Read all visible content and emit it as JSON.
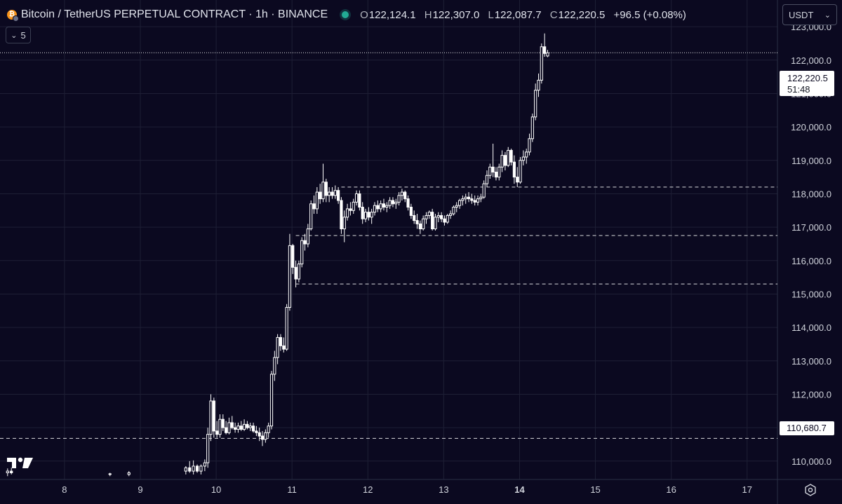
{
  "header": {
    "title": "Bitcoin / TetherUS PERPETUAL CONTRACT · 1h · BINANCE",
    "open_label": "O",
    "open": "122,124.1",
    "high_label": "H",
    "high": "122,307.0",
    "low_label": "L",
    "low": "122,087.7",
    "close_label": "C",
    "close": "122,220.5",
    "change": "+96.5 (+0.08%)",
    "status_color": "#22ab94"
  },
  "indicator_toggle": {
    "count": "5"
  },
  "currency": {
    "label": "USDT"
  },
  "price_tag": {
    "price": "122,220.5",
    "countdown": "51:48"
  },
  "level_tag": {
    "price": "110,680.7"
  },
  "colors": {
    "background": "#0b0920",
    "candle": "#ffffff",
    "grid": "#1e1f35",
    "text": "#d1d4dc"
  },
  "icons": {
    "logo": "tradingview-logo-icon",
    "settings": "gear-icon",
    "coin": "bitcoin-icon"
  },
  "chart_data": {
    "type": "candlestick",
    "timeframe": "1h",
    "x_tick_labels": [
      "8",
      "9",
      "10",
      "11",
      "12",
      "13",
      "14",
      "15",
      "16",
      "17"
    ],
    "y_tick_labels": [
      "123,000.0",
      "122,000.0",
      "121,000.0",
      "120,000.0",
      "119,000.0",
      "118,000.0",
      "117,000.0",
      "116,000.0",
      "115,000.0",
      "114,000.0",
      "113,000.0",
      "112,000.0",
      "111,000.0",
      "110,000.0"
    ],
    "y_tick_values": [
      123000,
      122000,
      121000,
      120000,
      119000,
      118000,
      117000,
      116000,
      115000,
      114000,
      113000,
      112000,
      111000,
      110000
    ],
    "x_tick_values": [
      8,
      9,
      10,
      11,
      12,
      13,
      14,
      15,
      16,
      17
    ],
    "x_range": [
      7.15,
      17.4
    ],
    "y_range": [
      109450,
      123800
    ],
    "grid": true,
    "horizontal_levels": [
      {
        "price": 118200,
        "from": 11.65,
        "style": "dashed"
      },
      {
        "price": 116750,
        "from": 11.05,
        "style": "dashed"
      },
      {
        "price": 115300,
        "from": 11.05,
        "style": "dashed"
      },
      {
        "price": 110680.7,
        "from": 7.15,
        "style": "dashed"
      }
    ],
    "last_price_line": 122220.5,
    "candles": [
      {
        "t": 7.25,
        "o": 109650,
        "h": 109780,
        "l": 109550,
        "c": 109700
      },
      {
        "t": 7.3,
        "o": 109700,
        "h": 109800,
        "l": 109600,
        "c": 109650
      },
      {
        "t": 8.6,
        "o": 109600,
        "h": 109650,
        "l": 109550,
        "c": 109620
      },
      {
        "t": 8.85,
        "o": 109600,
        "h": 109700,
        "l": 109550,
        "c": 109650
      },
      {
        "t": 9.6,
        "o": 109700,
        "h": 109850,
        "l": 109600,
        "c": 109800
      },
      {
        "t": 9.65,
        "o": 109800,
        "h": 110000,
        "l": 109650,
        "c": 109700
      },
      {
        "t": 9.7,
        "o": 109700,
        "h": 110020,
        "l": 109600,
        "c": 109850
      },
      {
        "t": 9.75,
        "o": 109850,
        "h": 109900,
        "l": 109650,
        "c": 109700
      },
      {
        "t": 9.8,
        "o": 109700,
        "h": 109900,
        "l": 109600,
        "c": 109850
      },
      {
        "t": 9.85,
        "o": 109850,
        "h": 110050,
        "l": 109700,
        "c": 109950
      },
      {
        "t": 9.89,
        "o": 109950,
        "h": 111000,
        "l": 109800,
        "c": 110800
      },
      {
        "t": 9.93,
        "o": 110800,
        "h": 112000,
        "l": 110600,
        "c": 111800
      },
      {
        "t": 9.97,
        "o": 111800,
        "h": 111900,
        "l": 110700,
        "c": 110900
      },
      {
        "t": 10.01,
        "o": 110900,
        "h": 111200,
        "l": 110700,
        "c": 110800
      },
      {
        "t": 10.05,
        "o": 110800,
        "h": 111400,
        "l": 110700,
        "c": 111250
      },
      {
        "t": 10.09,
        "o": 111250,
        "h": 111400,
        "l": 110900,
        "c": 111000
      },
      {
        "t": 10.13,
        "o": 111000,
        "h": 111200,
        "l": 110800,
        "c": 110850
      },
      {
        "t": 10.17,
        "o": 110850,
        "h": 111300,
        "l": 110800,
        "c": 111150
      },
      {
        "t": 10.21,
        "o": 111150,
        "h": 111350,
        "l": 110950,
        "c": 111000
      },
      {
        "t": 10.25,
        "o": 111000,
        "h": 111150,
        "l": 110850,
        "c": 110950
      },
      {
        "t": 10.29,
        "o": 110950,
        "h": 111150,
        "l": 110850,
        "c": 111050
      },
      {
        "t": 10.33,
        "o": 111050,
        "h": 111200,
        "l": 110900,
        "c": 110950
      },
      {
        "t": 10.37,
        "o": 110950,
        "h": 111250,
        "l": 110900,
        "c": 111100
      },
      {
        "t": 10.41,
        "o": 111100,
        "h": 111200,
        "l": 110950,
        "c": 111000
      },
      {
        "t": 10.45,
        "o": 111000,
        "h": 111150,
        "l": 110900,
        "c": 111050
      },
      {
        "t": 10.49,
        "o": 111050,
        "h": 111150,
        "l": 110850,
        "c": 110900
      },
      {
        "t": 10.53,
        "o": 110900,
        "h": 111050,
        "l": 110750,
        "c": 110850
      },
      {
        "t": 10.57,
        "o": 110850,
        "h": 111000,
        "l": 110600,
        "c": 110750
      },
      {
        "t": 10.61,
        "o": 110750,
        "h": 110900,
        "l": 110450,
        "c": 110650
      },
      {
        "t": 10.65,
        "o": 110650,
        "h": 110950,
        "l": 110550,
        "c": 110850
      },
      {
        "t": 10.69,
        "o": 110850,
        "h": 111150,
        "l": 110700,
        "c": 111050
      },
      {
        "t": 10.73,
        "o": 111050,
        "h": 112700,
        "l": 110950,
        "c": 112600
      },
      {
        "t": 10.77,
        "o": 112600,
        "h": 113300,
        "l": 112400,
        "c": 113100
      },
      {
        "t": 10.81,
        "o": 113100,
        "h": 113800,
        "l": 112900,
        "c": 113700
      },
      {
        "t": 10.85,
        "o": 113700,
        "h": 113800,
        "l": 113300,
        "c": 113450
      },
      {
        "t": 10.89,
        "o": 113450,
        "h": 113700,
        "l": 113250,
        "c": 113350
      },
      {
        "t": 10.93,
        "o": 113350,
        "h": 114700,
        "l": 113300,
        "c": 114600
      },
      {
        "t": 10.97,
        "o": 114600,
        "h": 116800,
        "l": 114500,
        "c": 116450
      },
      {
        "t": 11.01,
        "o": 116450,
        "h": 116500,
        "l": 115600,
        "c": 115800
      },
      {
        "t": 11.05,
        "o": 115800,
        "h": 116000,
        "l": 115200,
        "c": 115450
      },
      {
        "t": 11.09,
        "o": 115450,
        "h": 116000,
        "l": 115350,
        "c": 115900
      },
      {
        "t": 11.13,
        "o": 115900,
        "h": 116700,
        "l": 115800,
        "c": 116600
      },
      {
        "t": 11.17,
        "o": 116600,
        "h": 116800,
        "l": 116300,
        "c": 116500
      },
      {
        "t": 11.21,
        "o": 116500,
        "h": 117100,
        "l": 116400,
        "c": 116950
      },
      {
        "t": 11.25,
        "o": 116950,
        "h": 117800,
        "l": 116900,
        "c": 117700
      },
      {
        "t": 11.29,
        "o": 117700,
        "h": 117950,
        "l": 117400,
        "c": 117550
      },
      {
        "t": 11.33,
        "o": 117550,
        "h": 118200,
        "l": 117400,
        "c": 118050
      },
      {
        "t": 11.37,
        "o": 118050,
        "h": 118300,
        "l": 117700,
        "c": 117850
      },
      {
        "t": 11.41,
        "o": 117850,
        "h": 118900,
        "l": 117750,
        "c": 118350
      },
      {
        "t": 11.45,
        "o": 118350,
        "h": 118450,
        "l": 117750,
        "c": 117950
      },
      {
        "t": 11.49,
        "o": 117950,
        "h": 118200,
        "l": 117750,
        "c": 118050
      },
      {
        "t": 11.53,
        "o": 118050,
        "h": 118200,
        "l": 117850,
        "c": 117950
      },
      {
        "t": 11.57,
        "o": 117950,
        "h": 118250,
        "l": 117850,
        "c": 118100
      },
      {
        "t": 11.61,
        "o": 118100,
        "h": 118200,
        "l": 117700,
        "c": 117800
      },
      {
        "t": 11.65,
        "o": 117800,
        "h": 117900,
        "l": 116800,
        "c": 116950
      },
      {
        "t": 11.69,
        "o": 116950,
        "h": 117500,
        "l": 116550,
        "c": 117300
      },
      {
        "t": 11.73,
        "o": 117300,
        "h": 117700,
        "l": 117200,
        "c": 117550
      },
      {
        "t": 11.77,
        "o": 117550,
        "h": 117750,
        "l": 117350,
        "c": 117500
      },
      {
        "t": 11.81,
        "o": 117500,
        "h": 117850,
        "l": 117400,
        "c": 117750
      },
      {
        "t": 11.85,
        "o": 117750,
        "h": 118100,
        "l": 117650,
        "c": 118000
      },
      {
        "t": 11.89,
        "o": 118000,
        "h": 118100,
        "l": 117500,
        "c": 117600
      },
      {
        "t": 11.93,
        "o": 117600,
        "h": 117750,
        "l": 117100,
        "c": 117250
      },
      {
        "t": 11.97,
        "o": 117250,
        "h": 117550,
        "l": 117150,
        "c": 117450
      },
      {
        "t": 12.01,
        "o": 117450,
        "h": 117600,
        "l": 117200,
        "c": 117300
      },
      {
        "t": 12.05,
        "o": 117300,
        "h": 117550,
        "l": 117100,
        "c": 117450
      },
      {
        "t": 12.09,
        "o": 117450,
        "h": 117750,
        "l": 117350,
        "c": 117650
      },
      {
        "t": 12.13,
        "o": 117650,
        "h": 117800,
        "l": 117450,
        "c": 117550
      },
      {
        "t": 12.17,
        "o": 117550,
        "h": 117800,
        "l": 117450,
        "c": 117700
      },
      {
        "t": 12.21,
        "o": 117700,
        "h": 117850,
        "l": 117500,
        "c": 117600
      },
      {
        "t": 12.25,
        "o": 117600,
        "h": 117750,
        "l": 117450,
        "c": 117650
      },
      {
        "t": 12.29,
        "o": 117650,
        "h": 117900,
        "l": 117550,
        "c": 117800
      },
      {
        "t": 12.33,
        "o": 117800,
        "h": 117900,
        "l": 117600,
        "c": 117700
      },
      {
        "t": 12.37,
        "o": 117700,
        "h": 117850,
        "l": 117550,
        "c": 117750
      },
      {
        "t": 12.41,
        "o": 117750,
        "h": 118050,
        "l": 117650,
        "c": 117950
      },
      {
        "t": 12.45,
        "o": 117950,
        "h": 118150,
        "l": 117800,
        "c": 118050
      },
      {
        "t": 12.49,
        "o": 118050,
        "h": 118100,
        "l": 117750,
        "c": 117850
      },
      {
        "t": 12.53,
        "o": 117850,
        "h": 117950,
        "l": 117500,
        "c": 117600
      },
      {
        "t": 12.57,
        "o": 117600,
        "h": 117700,
        "l": 117250,
        "c": 117350
      },
      {
        "t": 12.61,
        "o": 117350,
        "h": 117500,
        "l": 117100,
        "c": 117200
      },
      {
        "t": 12.65,
        "o": 117200,
        "h": 117400,
        "l": 116950,
        "c": 117100
      },
      {
        "t": 12.69,
        "o": 117100,
        "h": 117200,
        "l": 116800,
        "c": 116950
      },
      {
        "t": 12.73,
        "o": 116950,
        "h": 117350,
        "l": 116900,
        "c": 117250
      },
      {
        "t": 12.77,
        "o": 117250,
        "h": 117450,
        "l": 117100,
        "c": 117350
      },
      {
        "t": 12.81,
        "o": 117350,
        "h": 117500,
        "l": 117250,
        "c": 117450
      },
      {
        "t": 12.85,
        "o": 117450,
        "h": 117550,
        "l": 116900,
        "c": 116950
      },
      {
        "t": 12.89,
        "o": 116950,
        "h": 117400,
        "l": 116900,
        "c": 117300
      },
      {
        "t": 12.93,
        "o": 117300,
        "h": 117450,
        "l": 117150,
        "c": 117350
      },
      {
        "t": 12.97,
        "o": 117350,
        "h": 117450,
        "l": 117150,
        "c": 117250
      },
      {
        "t": 13.01,
        "o": 117250,
        "h": 117350,
        "l": 117050,
        "c": 117150
      },
      {
        "t": 13.05,
        "o": 117150,
        "h": 117400,
        "l": 117100,
        "c": 117350
      },
      {
        "t": 13.09,
        "o": 117350,
        "h": 117500,
        "l": 117250,
        "c": 117400
      },
      {
        "t": 13.13,
        "o": 117400,
        "h": 117650,
        "l": 117350,
        "c": 117600
      },
      {
        "t": 13.17,
        "o": 117600,
        "h": 117750,
        "l": 117450,
        "c": 117650
      },
      {
        "t": 13.21,
        "o": 117650,
        "h": 117850,
        "l": 117550,
        "c": 117800
      },
      {
        "t": 13.25,
        "o": 117800,
        "h": 117950,
        "l": 117650,
        "c": 117850
      },
      {
        "t": 13.29,
        "o": 117850,
        "h": 118000,
        "l": 117700,
        "c": 117900
      },
      {
        "t": 13.33,
        "o": 117900,
        "h": 118050,
        "l": 117750,
        "c": 117850
      },
      {
        "t": 13.37,
        "o": 117850,
        "h": 118000,
        "l": 117700,
        "c": 117800
      },
      {
        "t": 13.41,
        "o": 117800,
        "h": 117950,
        "l": 117650,
        "c": 117750
      },
      {
        "t": 13.45,
        "o": 117750,
        "h": 117950,
        "l": 117650,
        "c": 117850
      },
      {
        "t": 13.49,
        "o": 117850,
        "h": 118000,
        "l": 117750,
        "c": 117900
      },
      {
        "t": 13.53,
        "o": 117900,
        "h": 118400,
        "l": 117850,
        "c": 118300
      },
      {
        "t": 13.57,
        "o": 118300,
        "h": 118700,
        "l": 118200,
        "c": 118550
      },
      {
        "t": 13.61,
        "o": 118550,
        "h": 118900,
        "l": 118450,
        "c": 118800
      },
      {
        "t": 13.65,
        "o": 118800,
        "h": 119500,
        "l": 118500,
        "c": 118650
      },
      {
        "t": 13.69,
        "o": 118650,
        "h": 118800,
        "l": 118400,
        "c": 118500
      },
      {
        "t": 13.73,
        "o": 118500,
        "h": 118900,
        "l": 118400,
        "c": 118800
      },
      {
        "t": 13.77,
        "o": 118800,
        "h": 119300,
        "l": 118650,
        "c": 119150
      },
      {
        "t": 13.81,
        "o": 119150,
        "h": 119250,
        "l": 118700,
        "c": 118850
      },
      {
        "t": 13.85,
        "o": 118850,
        "h": 119400,
        "l": 118800,
        "c": 119300
      },
      {
        "t": 13.89,
        "o": 119300,
        "h": 119350,
        "l": 118850,
        "c": 118950
      },
      {
        "t": 13.93,
        "o": 118950,
        "h": 119150,
        "l": 118300,
        "c": 118500
      },
      {
        "t": 13.97,
        "o": 118500,
        "h": 118800,
        "l": 118200,
        "c": 118350
      },
      {
        "t": 14.01,
        "o": 118350,
        "h": 119100,
        "l": 118300,
        "c": 119000
      },
      {
        "t": 14.05,
        "o": 119000,
        "h": 119300,
        "l": 118850,
        "c": 119100
      },
      {
        "t": 14.09,
        "o": 119100,
        "h": 119350,
        "l": 118900,
        "c": 119250
      },
      {
        "t": 14.13,
        "o": 119250,
        "h": 119800,
        "l": 119150,
        "c": 119650
      },
      {
        "t": 14.17,
        "o": 119650,
        "h": 120400,
        "l": 119550,
        "c": 120300
      },
      {
        "t": 14.21,
        "o": 120300,
        "h": 121300,
        "l": 120200,
        "c": 121100
      },
      {
        "t": 14.25,
        "o": 121100,
        "h": 121600,
        "l": 120900,
        "c": 121400
      },
      {
        "t": 14.29,
        "o": 121400,
        "h": 122500,
        "l": 121300,
        "c": 122400
      },
      {
        "t": 14.33,
        "o": 122400,
        "h": 122800,
        "l": 122100,
        "c": 122200
      },
      {
        "t": 14.37,
        "o": 122124.1,
        "h": 122307,
        "l": 122087.7,
        "c": 122220.5
      }
    ]
  }
}
